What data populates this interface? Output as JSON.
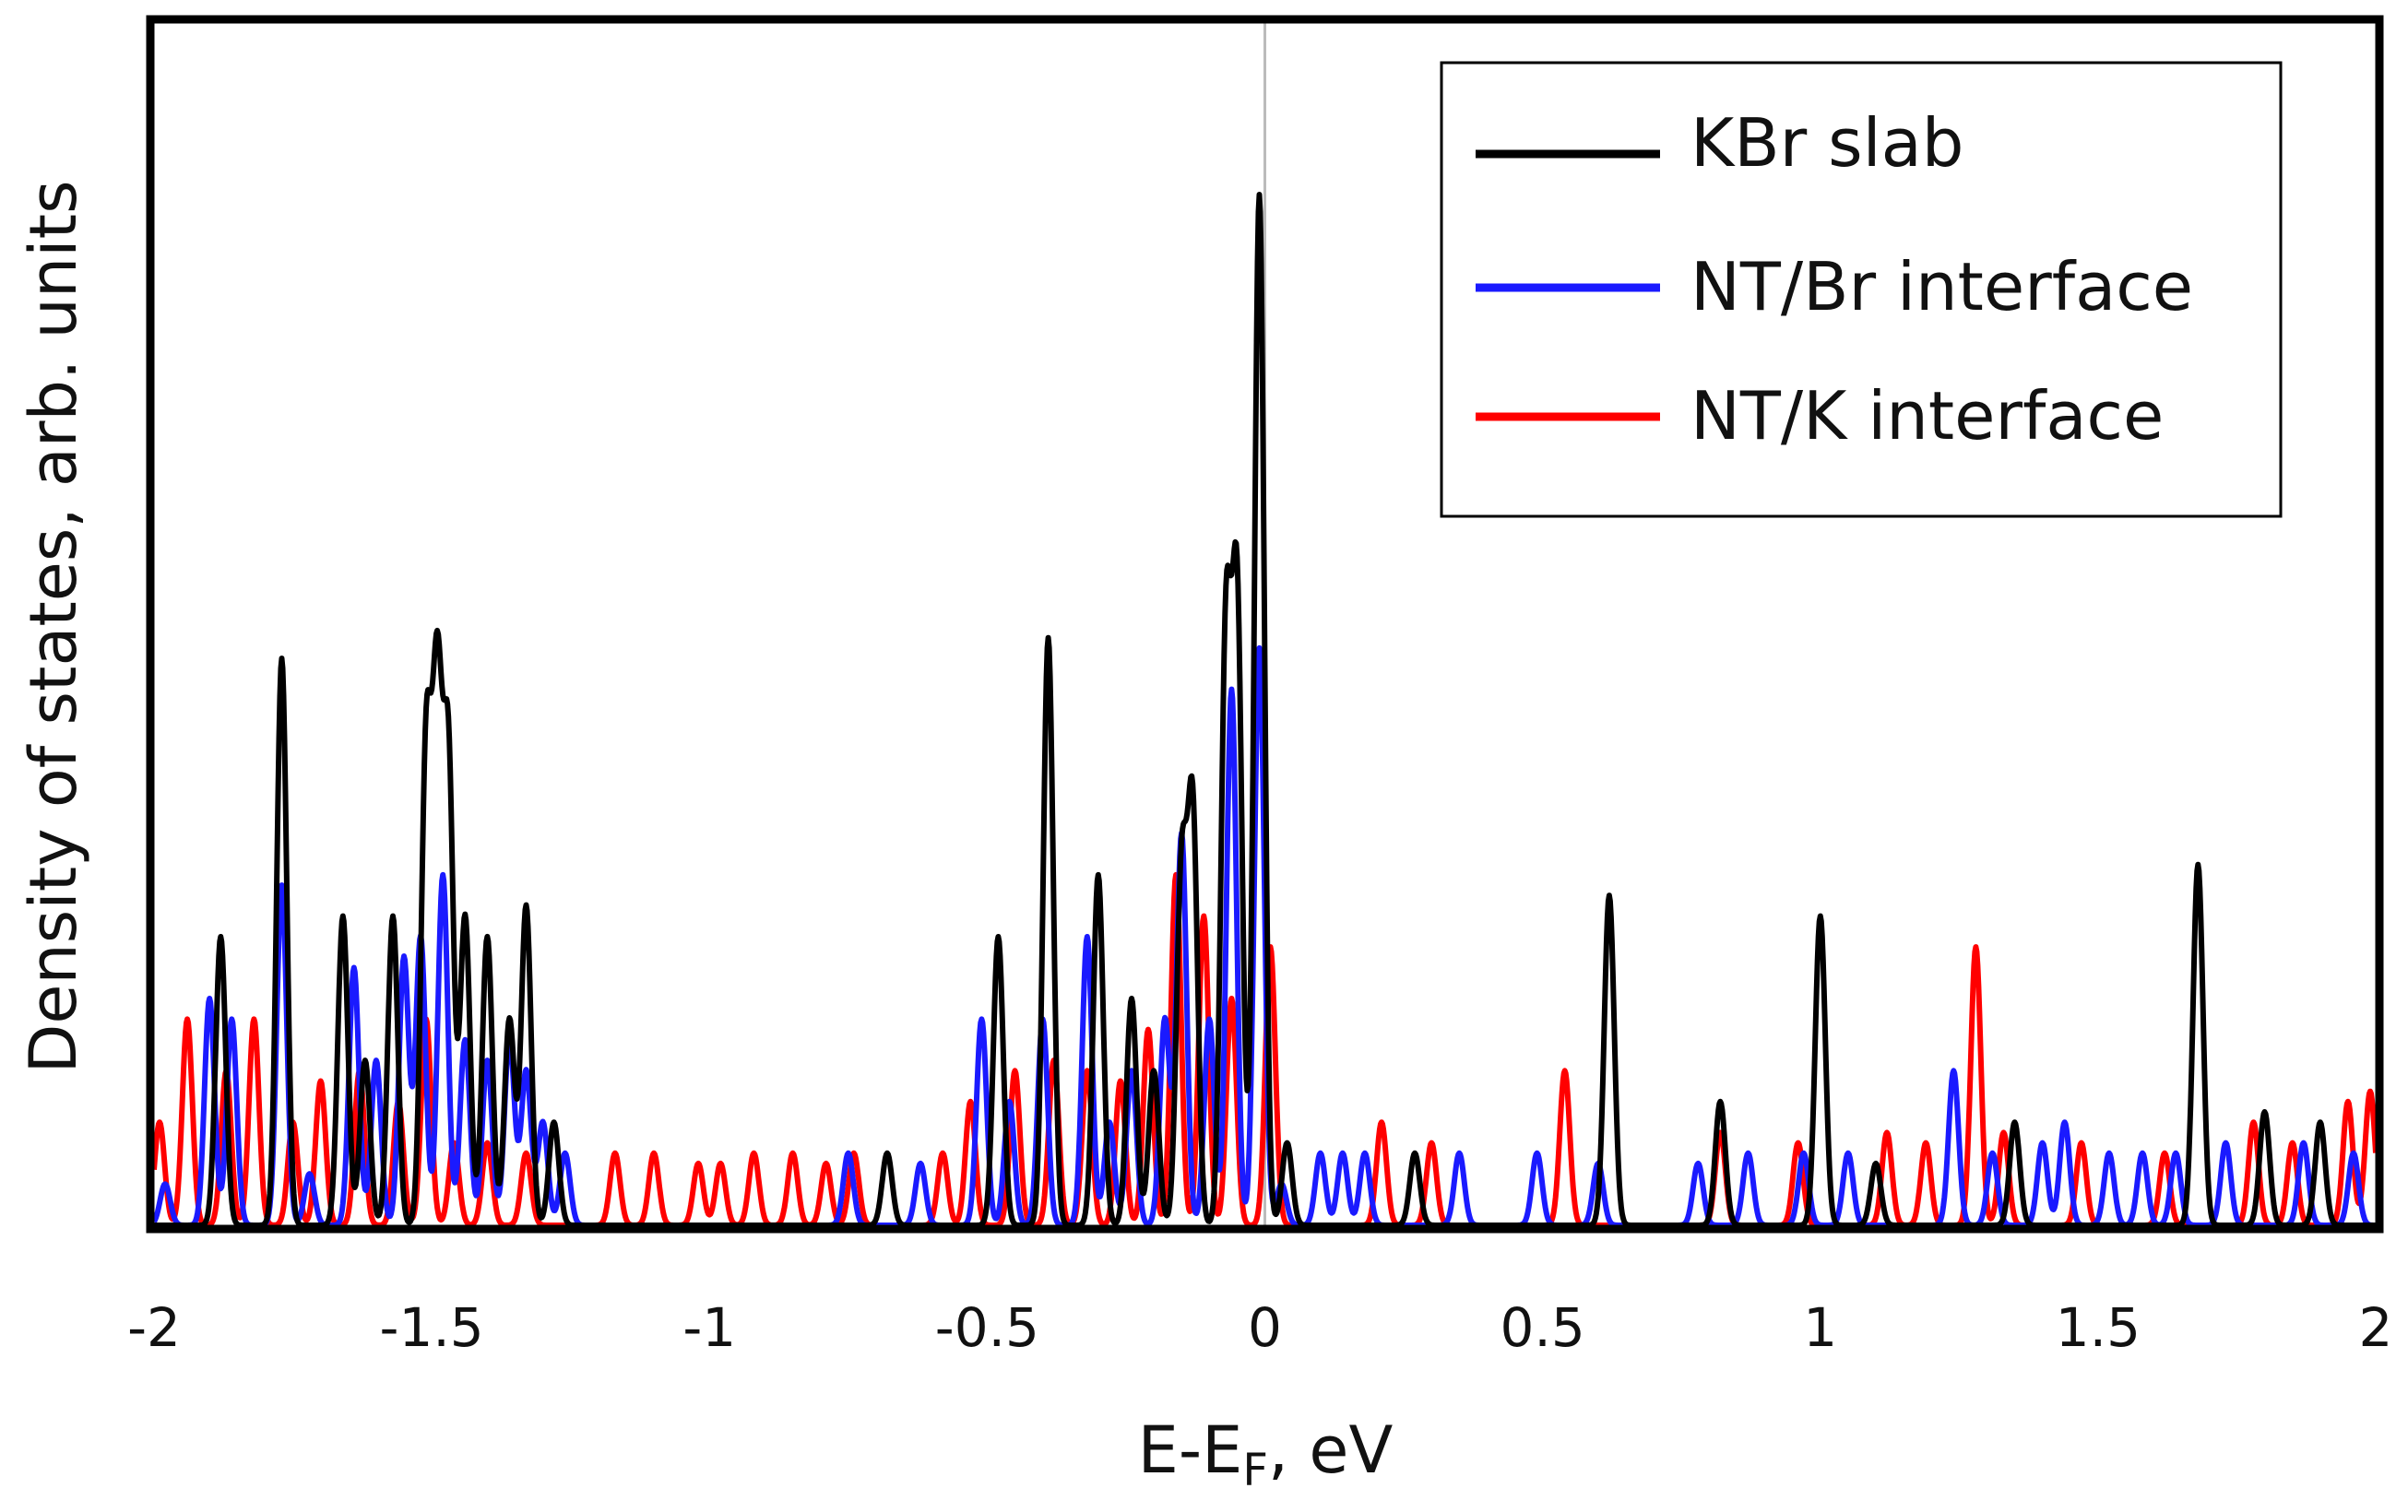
{
  "chart_data": {
    "type": "line",
    "title": "",
    "xlabel": "E-E",
    "xlabel_subscript": "F",
    "xlabel_suffix": ", eV",
    "ylabel": "Density of states, arb. units",
    "xlim": [
      -2,
      2
    ],
    "ylim": [
      0,
      1
    ],
    "xticks": [
      "-2",
      "-1.5",
      "-1",
      "-0.5",
      "0",
      "0.5",
      "1",
      "1.5",
      "2"
    ],
    "fermi_line_x": 0,
    "legend_position": "top-right",
    "colors": {
      "kbr": "#000000",
      "ntbr": "#1a1aff",
      "ntk": "#ff0000",
      "fermi": "#bbbbbb"
    },
    "series": [
      {
        "name": "KBr slab",
        "color": "#000000",
        "peaks": [
          [
            -1.88,
            0.28
          ],
          [
            -1.77,
            0.55
          ],
          [
            -1.66,
            0.3
          ],
          [
            -1.62,
            0.16
          ],
          [
            -1.57,
            0.3
          ],
          [
            -1.51,
            0.46
          ],
          [
            -1.49,
            0.5
          ],
          [
            -1.47,
            0.45
          ],
          [
            -1.44,
            0.3
          ],
          [
            -1.4,
            0.28
          ],
          [
            -1.36,
            0.2
          ],
          [
            -1.33,
            0.31
          ],
          [
            -1.28,
            0.1
          ],
          [
            -0.68,
            0.07
          ],
          [
            -0.48,
            0.28
          ],
          [
            -0.39,
            0.57
          ],
          [
            -0.3,
            0.34
          ],
          [
            -0.24,
            0.22
          ],
          [
            -0.2,
            0.15
          ],
          [
            -0.15,
            0.34
          ],
          [
            -0.13,
            0.4
          ],
          [
            -0.07,
            0.57
          ],
          [
            -0.05,
            0.6
          ],
          [
            -0.01,
            1.0
          ],
          [
            0.04,
            0.08
          ],
          [
            0.27,
            0.07
          ],
          [
            0.62,
            0.32
          ],
          [
            0.82,
            0.12
          ],
          [
            1.0,
            0.3
          ],
          [
            1.1,
            0.06
          ],
          [
            1.35,
            0.1
          ],
          [
            1.68,
            0.35
          ],
          [
            1.8,
            0.11
          ],
          [
            1.9,
            0.1
          ]
        ]
      },
      {
        "name": "NT/Br interface",
        "color": "#1a1aff",
        "peaks": [
          [
            -1.98,
            0.04
          ],
          [
            -1.9,
            0.22
          ],
          [
            -1.86,
            0.2
          ],
          [
            -1.77,
            0.33
          ],
          [
            -1.72,
            0.05
          ],
          [
            -1.64,
            0.25
          ],
          [
            -1.6,
            0.16
          ],
          [
            -1.55,
            0.26
          ],
          [
            -1.52,
            0.28
          ],
          [
            -1.48,
            0.34
          ],
          [
            -1.44,
            0.18
          ],
          [
            -1.4,
            0.16
          ],
          [
            -1.36,
            0.18
          ],
          [
            -1.33,
            0.15
          ],
          [
            -1.3,
            0.1
          ],
          [
            -1.26,
            0.07
          ],
          [
            -0.75,
            0.07
          ],
          [
            -0.62,
            0.06
          ],
          [
            -0.51,
            0.2
          ],
          [
            -0.46,
            0.12
          ],
          [
            -0.4,
            0.2
          ],
          [
            -0.32,
            0.28
          ],
          [
            -0.28,
            0.1
          ],
          [
            -0.24,
            0.15
          ],
          [
            -0.18,
            0.2
          ],
          [
            -0.15,
            0.38
          ],
          [
            -0.1,
            0.2
          ],
          [
            -0.06,
            0.52
          ],
          [
            -0.01,
            0.56
          ],
          [
            0.03,
            0.04
          ],
          [
            0.1,
            0.07
          ],
          [
            0.14,
            0.07
          ],
          [
            0.18,
            0.07
          ],
          [
            0.35,
            0.07
          ],
          [
            0.49,
            0.07
          ],
          [
            0.6,
            0.06
          ],
          [
            0.78,
            0.06
          ],
          [
            0.87,
            0.07
          ],
          [
            0.97,
            0.07
          ],
          [
            1.05,
            0.07
          ],
          [
            1.24,
            0.15
          ],
          [
            1.31,
            0.07
          ],
          [
            1.4,
            0.08
          ],
          [
            1.44,
            0.1
          ],
          [
            1.52,
            0.07
          ],
          [
            1.58,
            0.07
          ],
          [
            1.64,
            0.07
          ],
          [
            1.73,
            0.08
          ],
          [
            1.87,
            0.08
          ],
          [
            1.96,
            0.07
          ]
        ]
      },
      {
        "name": "NT/K interface",
        "color": "#ff0000",
        "peaks": [
          [
            -1.99,
            0.1
          ],
          [
            -1.94,
            0.2
          ],
          [
            -1.87,
            0.15
          ],
          [
            -1.82,
            0.2
          ],
          [
            -1.75,
            0.1
          ],
          [
            -1.7,
            0.14
          ],
          [
            -1.63,
            0.15
          ],
          [
            -1.56,
            0.12
          ],
          [
            -1.51,
            0.2
          ],
          [
            -1.46,
            0.08
          ],
          [
            -1.4,
            0.08
          ],
          [
            -1.33,
            0.07
          ],
          [
            -1.17,
            0.07
          ],
          [
            -1.1,
            0.07
          ],
          [
            -1.02,
            0.06
          ],
          [
            -0.98,
            0.06
          ],
          [
            -0.92,
            0.07
          ],
          [
            -0.85,
            0.07
          ],
          [
            -0.79,
            0.06
          ],
          [
            -0.74,
            0.07
          ],
          [
            -0.58,
            0.07
          ],
          [
            -0.53,
            0.12
          ],
          [
            -0.45,
            0.15
          ],
          [
            -0.38,
            0.16
          ],
          [
            -0.32,
            0.15
          ],
          [
            -0.26,
            0.14
          ],
          [
            -0.21,
            0.19
          ],
          [
            -0.16,
            0.34
          ],
          [
            -0.11,
            0.3
          ],
          [
            -0.06,
            0.22
          ],
          [
            0.01,
            0.27
          ],
          [
            0.21,
            0.1
          ],
          [
            0.3,
            0.08
          ],
          [
            0.54,
            0.15
          ],
          [
            0.82,
            0.09
          ],
          [
            0.96,
            0.08
          ],
          [
            1.12,
            0.09
          ],
          [
            1.19,
            0.08
          ],
          [
            1.28,
            0.27
          ],
          [
            1.33,
            0.09
          ],
          [
            1.47,
            0.08
          ],
          [
            1.62,
            0.07
          ],
          [
            1.78,
            0.1
          ],
          [
            1.85,
            0.08
          ],
          [
            1.95,
            0.12
          ],
          [
            1.99,
            0.13
          ]
        ]
      }
    ]
  }
}
